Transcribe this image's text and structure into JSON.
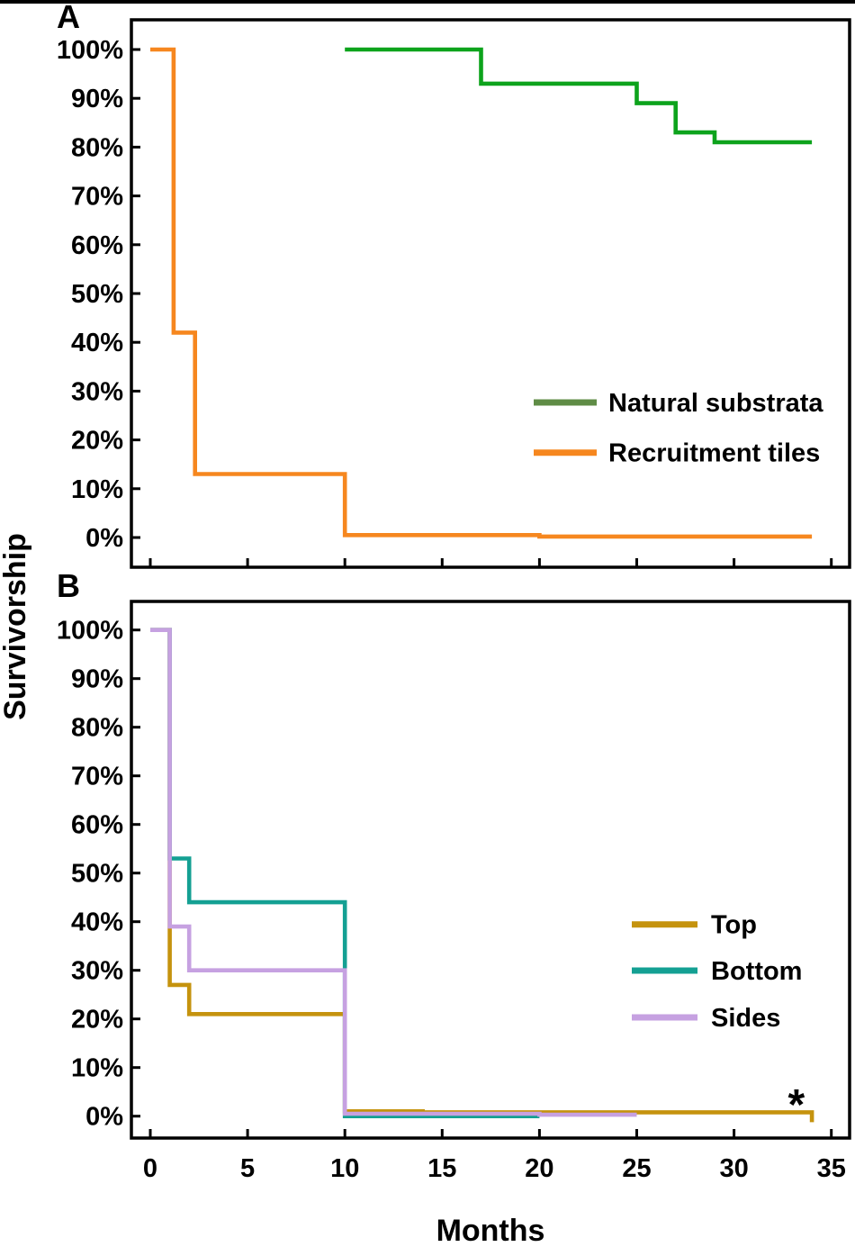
{
  "ylabel": "Survivorship",
  "xlabel": "Months",
  "panels": [
    {
      "label": "A"
    },
    {
      "label": "B"
    }
  ],
  "axis": {
    "x_tick_labels": [
      "0",
      "5",
      "10",
      "15",
      "20",
      "25",
      "30",
      "35"
    ],
    "x_tick_values": [
      0,
      5,
      10,
      15,
      20,
      25,
      30,
      35
    ],
    "y_tick_labels": [
      "100%",
      "90%",
      "80%",
      "70%",
      "60%",
      "50%",
      "40%",
      "30%",
      "20%",
      "10%",
      "0%"
    ],
    "y_tick_values": [
      100,
      90,
      80,
      70,
      60,
      50,
      40,
      30,
      20,
      10,
      0
    ]
  },
  "chart_data": [
    {
      "panel": "A",
      "type": "line",
      "subtype": "step-survival",
      "xlabel": "Months",
      "ylabel": "Survivorship",
      "xlim": [
        0,
        35
      ],
      "ylim": [
        0,
        100
      ],
      "grid": false,
      "legend_position": "right-center",
      "series": [
        {
          "name": "Natural substrata",
          "color": "#0da31c",
          "legend_color": "#5f8c46",
          "steps": [
            [
              10,
              100
            ],
            [
              17,
              93
            ],
            [
              25,
              89
            ],
            [
              27,
              83
            ],
            [
              29,
              81
            ]
          ],
          "end": 34
        },
        {
          "name": "Recruitment tiles",
          "color": "#f6871f",
          "legend_color": "#f6871f",
          "steps": [
            [
              0,
              100
            ],
            [
              1.2,
              42
            ],
            [
              2.3,
              13
            ],
            [
              10,
              0.5
            ],
            [
              20,
              0.2
            ]
          ],
          "end": 34
        }
      ]
    },
    {
      "panel": "B",
      "type": "line",
      "subtype": "step-survival",
      "xlabel": "Months",
      "ylabel": "Survivorship",
      "xlim": [
        0,
        35
      ],
      "ylim": [
        0,
        100
      ],
      "grid": false,
      "legend_position": "right-center",
      "series": [
        {
          "name": "Top",
          "color": "#c5930e",
          "legend_color": "#c5930e",
          "steps": [
            [
              0,
              100
            ],
            [
              1,
              27
            ],
            [
              2,
              21
            ],
            [
              10,
              1
            ],
            [
              14,
              0.8
            ]
          ],
          "end": 34,
          "censor_tick_at_end": true
        },
        {
          "name": "Bottom",
          "color": "#14a093",
          "legend_color": "#14a093",
          "steps": [
            [
              0,
              100
            ],
            [
              1,
              53
            ],
            [
              2,
              44
            ],
            [
              10,
              0
            ]
          ],
          "end": 20
        },
        {
          "name": "Sides",
          "color": "#c6a1e1",
          "legend_color": "#c6a1e1",
          "steps": [
            [
              0,
              100
            ],
            [
              1,
              39
            ],
            [
              2,
              30
            ],
            [
              10,
              0.5
            ],
            [
              20,
              0.3
            ]
          ],
          "end": 25
        }
      ],
      "annotation": {
        "text": "*",
        "color": "#e8202a",
        "month": 33.2,
        "value": 3.5
      }
    }
  ]
}
